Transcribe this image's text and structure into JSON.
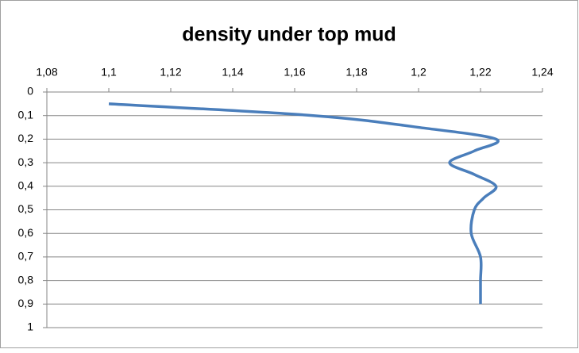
{
  "chart_data": {
    "type": "line",
    "title": "density under top mud",
    "x": [
      1.1,
      1.166,
      1.2,
      1.225,
      1.218,
      1.21,
      1.218,
      1.225,
      1.221,
      1.218,
      1.217,
      1.22,
      1.22,
      1.22
    ],
    "values": [
      0.05,
      0.1,
      0.15,
      0.2,
      0.25,
      0.3,
      0.35,
      0.4,
      0.45,
      0.5,
      0.6,
      0.7,
      0.8,
      0.9
    ],
    "color": "#4a7ebb",
    "xlim": [
      1.08,
      1.24
    ],
    "xticks": [
      {
        "value": 1.08,
        "label": "1,08"
      },
      {
        "value": 1.1,
        "label": "1,1"
      },
      {
        "value": 1.12,
        "label": "1,12"
      },
      {
        "value": 1.14,
        "label": "1,14"
      },
      {
        "value": 1.16,
        "label": "1,16"
      },
      {
        "value": 1.18,
        "label": "1,18"
      },
      {
        "value": 1.2,
        "label": "1,2"
      },
      {
        "value": 1.22,
        "label": "1,22"
      },
      {
        "value": 1.24,
        "label": "1,24"
      }
    ],
    "ylim": [
      0,
      1
    ],
    "yticks": [
      0,
      {
        "value": 0.1,
        "label": "0,1"
      },
      {
        "value": 0.2,
        "label": "0,2"
      },
      {
        "value": 0.3,
        "label": "0,3"
      },
      {
        "value": 0.4,
        "label": "0,4"
      },
      {
        "value": 0.5,
        "label": "0,5"
      },
      {
        "value": 0.6,
        "label": "0,6"
      },
      {
        "value": 0.7,
        "label": "0,7"
      },
      {
        "value": 0.8,
        "label": "0,8"
      },
      {
        "value": 0.9,
        "label": "0,9"
      },
      1
    ],
    "y_inverted": true,
    "x_axis_top": true,
    "grid": true
  }
}
